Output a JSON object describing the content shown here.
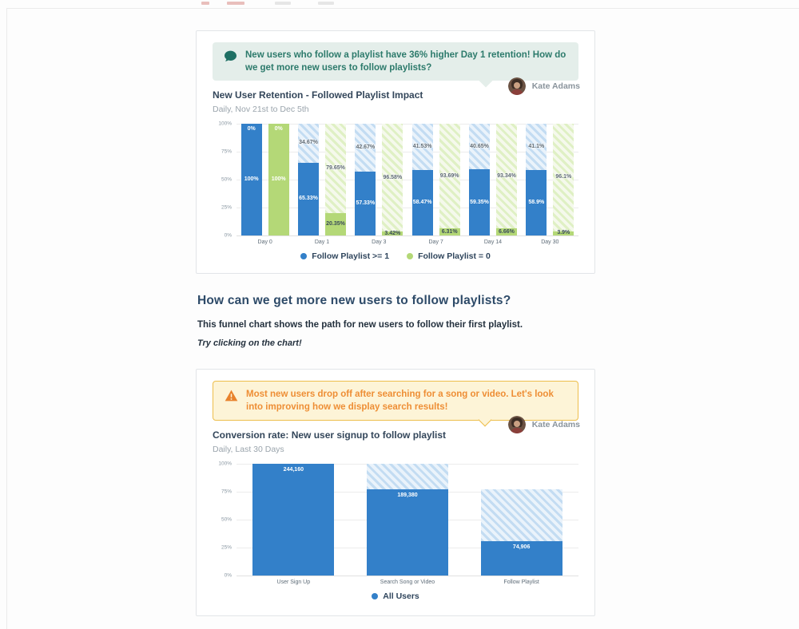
{
  "retention_card": {
    "callout_text": "New users who follow a playlist have 36% higher Day 1 retention! How do we get more new users to follow playlists?",
    "callout_icon": "speech-bubble",
    "author": "Kate Adams",
    "title": "New User Retention - Followed Playlist Impact",
    "subtitle": "Daily, Nov 21st to Dec 5th"
  },
  "section": {
    "heading": "How can we get more new users to follow playlists?",
    "body": "This funnel chart shows the path for new users to follow their first playlist.",
    "hint": "Try clicking on the chart!"
  },
  "funnel_card": {
    "callout_text": "Most new users drop off after searching for a song or video. Let's look into improving how we display search results!",
    "callout_icon": "warning-triangle",
    "author": "Kate Adams",
    "title": "Conversion rate: New user signup to follow playlist",
    "subtitle": "Daily, Last 30 Days"
  },
  "colors": {
    "blue": "#3380c9",
    "green": "#b4d877",
    "teal_text": "#2c7a6b",
    "teal_bg": "#e4eeea",
    "orange_text": "#ee8e35",
    "yellow_bg": "#fdf4d7",
    "yellow_border": "#edbe4b"
  },
  "chart_data": [
    {
      "type": "bar",
      "subtype": "stacked-grouped-retention",
      "title": "New User Retention - Followed Playlist Impact",
      "subtitle": "Daily, Nov 21st to Dec 5th",
      "categories": [
        "Day 0",
        "Day 1",
        "Day 3",
        "Day 7",
        "Day 14",
        "Day 30"
      ],
      "y_ticks": [
        "100%",
        "75%",
        "50%",
        "25%",
        "0%"
      ],
      "ylim": [
        0,
        100
      ],
      "grid": true,
      "legend_position": "bottom",
      "series": [
        {
          "name": "Follow Playlist >= 1",
          "color": "#3380c9",
          "hatch_style": "blue-diagonal",
          "retained_pct": [
            100,
            65.33,
            57.33,
            58.47,
            59.35,
            58.9
          ],
          "retained_labels": [
            "100%",
            "65.33%",
            "57.33%",
            "58.47%",
            "59.35%",
            "58.9%"
          ],
          "churned_pct": [
            0,
            34.67,
            42.67,
            41.53,
            40.65,
            41.1
          ],
          "churned_labels": [
            "0%",
            "34.67%",
            "42.67%",
            "41.53%",
            "40.65%",
            "41.1%"
          ]
        },
        {
          "name": "Follow Playlist = 0",
          "color": "#b4d877",
          "hatch_style": "green-diagonal",
          "retained_pct": [
            100,
            20.35,
            3.42,
            6.31,
            6.66,
            3.9
          ],
          "retained_labels": [
            "100%",
            "20.35%",
            "3.42%",
            "6.31%",
            "6.66%",
            "3.9%"
          ],
          "churned_pct": [
            0,
            79.65,
            96.58,
            93.69,
            93.34,
            96.1
          ],
          "churned_labels": [
            "0%",
            "79.65%",
            "96.58%",
            "93.69%",
            "93.34%",
            "96.1%"
          ]
        }
      ]
    },
    {
      "type": "bar",
      "subtype": "funnel",
      "title": "Conversion rate: New user signup to follow playlist",
      "subtitle": "Daily, Last 30 Days",
      "categories": [
        "User Sign Up",
        "Search Song or Video",
        "Follow Playlist"
      ],
      "values": [
        244160,
        189380,
        74906
      ],
      "value_labels": [
        "244,160",
        "189,380",
        "74,906"
      ],
      "solid_pct": [
        100,
        77.56,
        30.68
      ],
      "hatch_top_pct": [
        100,
        100,
        77.56
      ],
      "y_ticks": [
        "100%",
        "75%",
        "50%",
        "25%",
        "0%"
      ],
      "ylim": [
        0,
        100
      ],
      "grid": true,
      "series_color": "#3380c9",
      "legend": [
        "All Users"
      ],
      "legend_position": "bottom"
    }
  ]
}
